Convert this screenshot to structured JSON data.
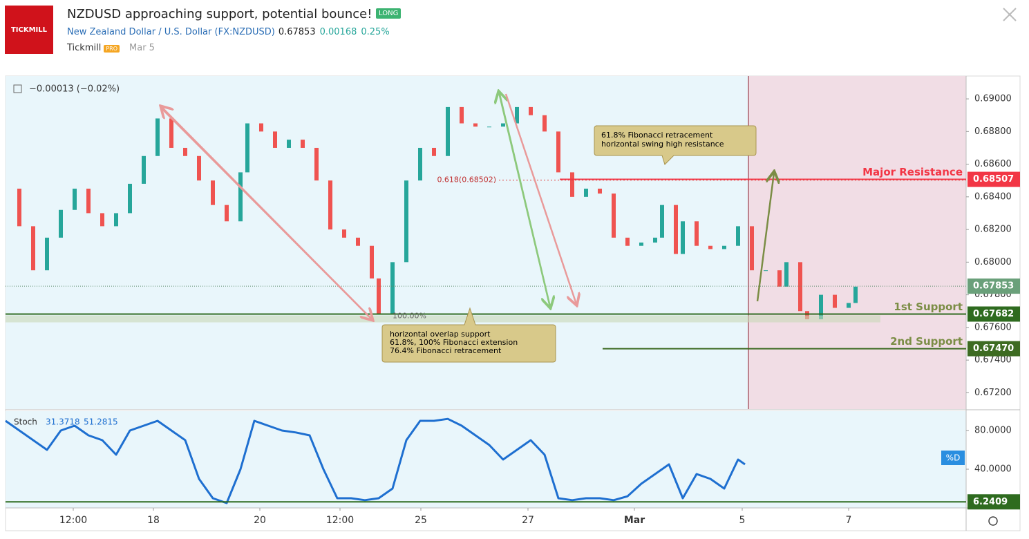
{
  "header": {
    "title": "NZDUSD approaching support, potential bounce!",
    "badge": "LONG",
    "logo": "TICKMILL",
    "symbol_name": "New Zealand Dollar / U.S. Dollar",
    "symbol": "(FX:NZDUSD)",
    "price": "0.67853",
    "change": "0.00168",
    "change_pct": "0.25%",
    "author": "Tickmill",
    "author_badge": "PRO",
    "date": "Mar 5"
  },
  "chart_data": [
    {
      "type": "candlestick",
      "change_label": "−0.00013 (−0.02%)",
      "x": [
        0,
        2,
        4,
        6,
        8,
        10,
        12,
        14,
        16,
        18,
        20,
        22,
        24,
        26,
        28,
        30,
        32,
        34,
        35,
        37,
        39,
        41,
        43,
        45,
        47,
        49,
        51,
        53,
        54,
        56,
        58,
        60,
        62,
        64,
        66,
        68,
        70,
        72,
        74,
        76,
        78,
        80,
        82,
        84,
        86,
        88,
        90,
        92,
        94,
        95,
        97,
        98,
        100,
        102,
        104,
        106,
        108,
        110,
        112,
        113,
        115,
        116,
        118,
        120,
        122,
        123
      ],
      "values": [
        0.6845,
        0.6822,
        0.6795,
        0.6815,
        0.6832,
        0.6845,
        0.683,
        0.6822,
        0.683,
        0.6848,
        0.6865,
        0.6888,
        0.687,
        0.6865,
        0.685,
        0.6835,
        0.6825,
        0.6855,
        0.6885,
        0.688,
        0.687,
        0.6875,
        0.687,
        0.685,
        0.682,
        0.6815,
        0.681,
        0.679,
        0.6768,
        0.68,
        0.685,
        0.687,
        0.6865,
        0.6895,
        0.6885,
        0.6883,
        0.6883,
        0.6885,
        0.6895,
        0.689,
        0.688,
        0.6855,
        0.684,
        0.6845,
        0.6842,
        0.6815,
        0.681,
        0.6812,
        0.6815,
        0.6835,
        0.6805,
        0.6825,
        0.681,
        0.6808,
        0.681,
        0.6822,
        0.6795,
        0.6795,
        0.6785,
        0.68,
        0.677,
        0.6765,
        0.678,
        0.6772,
        0.6775,
        0.6785
      ],
      "up_color": "#26a69a",
      "down_color": "#ef5350",
      "xlim": [
        0,
        139
      ],
      "ylim": [
        0.671,
        0.6914
      ],
      "xticks": [
        {
          "value": 9.8,
          "label": "12:00"
        },
        {
          "value": 21.4,
          "label": "18"
        },
        {
          "value": 36.8,
          "label": "20"
        },
        {
          "value": 48.4,
          "label": "12:00"
        },
        {
          "value": 60.1,
          "label": "25"
        },
        {
          "value": 75.6,
          "label": "27"
        },
        {
          "value": 91,
          "label": "Mar"
        },
        {
          "value": 106.6,
          "label": "5"
        },
        {
          "value": 122,
          "label": "7"
        }
      ],
      "yticks": [
        {
          "value": 0.69,
          "label": "0.69000"
        },
        {
          "value": 0.688,
          "label": "0.68800"
        },
        {
          "value": 0.686,
          "label": "0.68600"
        },
        {
          "value": 0.684,
          "label": "0.68400"
        },
        {
          "value": 0.682,
          "label": "0.68200"
        },
        {
          "value": 0.68,
          "label": "0.68000"
        },
        {
          "value": 0.678,
          "label": "0.67800"
        },
        {
          "value": 0.676,
          "label": "0.67600"
        },
        {
          "value": 0.674,
          "label": "0.67400"
        },
        {
          "value": 0.672,
          "label": "0.67200"
        }
      ],
      "last_price": {
        "value": 0.67853,
        "label": "0.67853"
      },
      "levels": [
        {
          "name": "Major Resistance",
          "value": 0.68507,
          "label": "0.68507",
          "color": "#f23645"
        },
        {
          "name": "1st Support",
          "value": 0.67682,
          "label": "0.67682",
          "color": "#2e6b1f"
        },
        {
          "name": "2nd Support",
          "value": 0.6747,
          "label": "0.67470",
          "color": "#3d6b22"
        }
      ],
      "fib": {
        "value": 0.68502,
        "label": "0.618(0.68502)",
        "pct_label": "100.00%"
      },
      "notes": [
        [
          "61.8% Fibonacci retracement",
          "horizontal swing high resistance"
        ],
        [
          "horizontal overlap support",
          "61.8%, 100% Fibonacci extension",
          "76.4% Fibonacci retracement"
        ]
      ]
    },
    {
      "type": "line",
      "name": "Stoch",
      "k_label": "31.3718",
      "d_label": "51.2815",
      "legend": "%D",
      "color": "#1e6fd0",
      "x": [
        0,
        2,
        4,
        6,
        8,
        10,
        12,
        14,
        16,
        18,
        20,
        22,
        24,
        26,
        28,
        30,
        32,
        34,
        36,
        38,
        40,
        42,
        44,
        46,
        48,
        50,
        52,
        54,
        56,
        58,
        60,
        62,
        64,
        66,
        68,
        70,
        72,
        74,
        76,
        78,
        80,
        82,
        84,
        86,
        88,
        90,
        92,
        94,
        96,
        98,
        100,
        102,
        104,
        106,
        107
      ],
      "values": [
        90,
        80,
        70,
        60,
        80,
        85,
        75,
        70,
        55,
        80,
        85,
        90,
        80,
        70,
        30,
        10,
        5,
        40,
        90,
        85,
        80,
        78,
        75,
        40,
        10,
        10,
        8,
        10,
        20,
        70,
        90,
        90,
        92,
        85,
        75,
        65,
        50,
        60,
        70,
        55,
        10,
        8,
        10,
        10,
        8,
        12,
        25,
        35,
        45,
        10,
        35,
        30,
        20,
        50,
        45
      ],
      "xlim": [
        0,
        139
      ],
      "ylim": [
        0,
        100
      ],
      "yticks": [
        {
          "value": 80,
          "label": "80.0000"
        },
        {
          "value": 40,
          "label": "40.0000"
        }
      ],
      "level": {
        "value": 6.2409,
        "label": "6.2409",
        "color": "#2e6b1f"
      }
    }
  ]
}
